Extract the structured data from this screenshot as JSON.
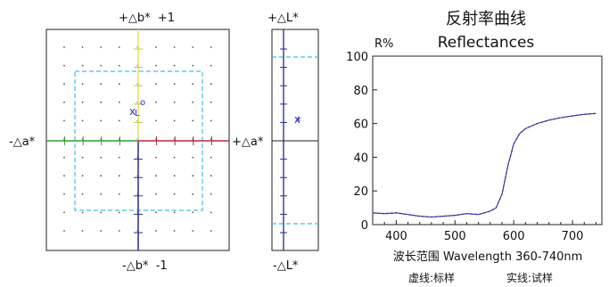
{
  "ab_plot": {
    "top_label": "+△b*  +1",
    "bottom_label": "-△b*  -1",
    "left_label": "-△a*",
    "right_label": "+△a*",
    "axis_colors": {
      "positive_b": "#e8e060",
      "negative_b": "#2a2a8a",
      "negative_a": "#2fa02f",
      "positive_a": "#b02a3a",
      "tolerance_box": "#40c0e0"
    },
    "markers": [
      {
        "symbol": "o",
        "color": "#3030c0"
      },
      {
        "symbol": "L",
        "color": "#3030c0"
      },
      {
        "symbol": "x",
        "color": "#3030c0"
      },
      {
        "symbol": "*",
        "color": "#3030c0"
      }
    ]
  },
  "l_plot": {
    "top_label": "+△L*",
    "bottom_label": "-△L*",
    "markers": [
      {
        "symbol": "x",
        "color": "#3030c0"
      },
      {
        "symbol": "*",
        "color": "#3030c0"
      }
    ]
  },
  "chart_data": {
    "type": "line",
    "title": "反射率曲线",
    "subtitle": "Reflectances",
    "ylabel": "R%",
    "xlabel": "波长范围 Wavelength 360-740nm",
    "legend": {
      "dashed": "虚线:标样",
      "solid": "实线:试样"
    },
    "xlim": [
      360,
      750
    ],
    "ylim": [
      0,
      100
    ],
    "xticks": [
      400,
      500,
      600,
      700
    ],
    "yticks": [
      0,
      20,
      40,
      60,
      80,
      100
    ],
    "series": [
      {
        "style": "dashed",
        "color": "#d02a8a",
        "x": [
          360,
          380,
          400,
          420,
          440,
          460,
          480,
          500,
          520,
          540,
          560,
          570,
          580,
          590,
          600,
          610,
          620,
          640,
          660,
          680,
          700,
          720,
          740
        ],
        "values": [
          7,
          6.5,
          7,
          6,
          5,
          4.5,
          5,
          5.5,
          6.5,
          6,
          8,
          10,
          18,
          35,
          48,
          54,
          57,
          60,
          62,
          63.5,
          64.5,
          65.5,
          66
        ]
      },
      {
        "style": "solid",
        "color": "#3a3aa0",
        "x": [
          360,
          380,
          400,
          420,
          440,
          460,
          480,
          500,
          520,
          540,
          560,
          570,
          580,
          590,
          600,
          610,
          620,
          640,
          660,
          680,
          700,
          720,
          740
        ],
        "values": [
          7,
          6.5,
          7,
          6,
          5,
          4.5,
          5,
          5.5,
          6.5,
          6,
          8,
          10,
          18,
          35,
          48,
          54,
          57,
          60,
          62,
          63.5,
          64.5,
          65.5,
          66
        ]
      }
    ]
  }
}
